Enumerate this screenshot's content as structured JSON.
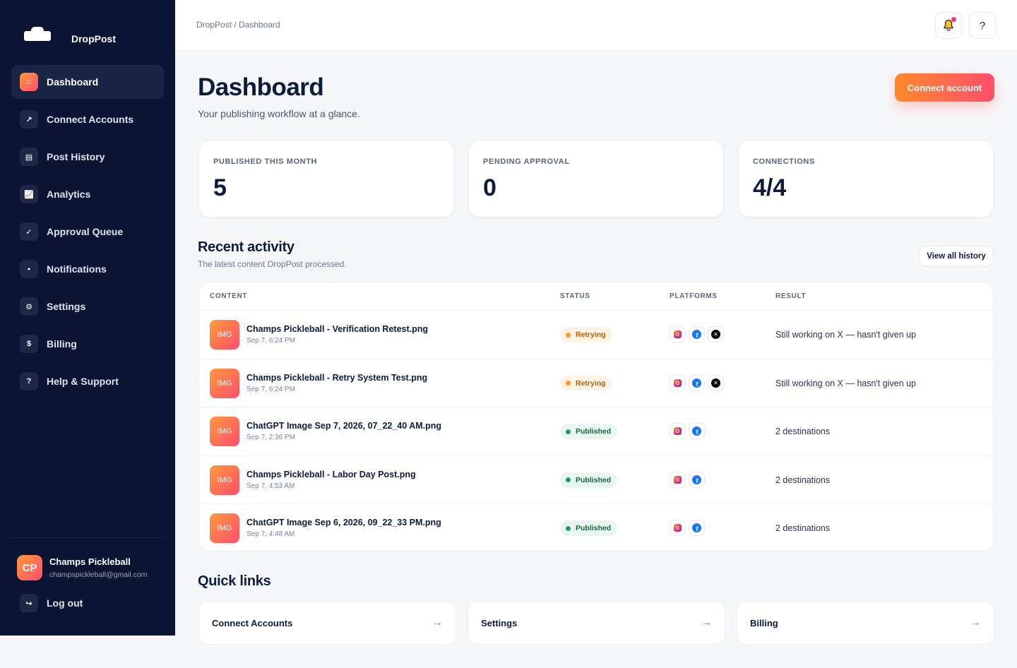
{
  "brand": {
    "name": "DropPost",
    "logo_icon": "cloud-logo-icon"
  },
  "sidebar": {
    "items": [
      {
        "label": "Dashboard",
        "icon": "⌂",
        "icon_name": "home-icon",
        "active": true
      },
      {
        "label": "Connect Accounts",
        "icon": "↗",
        "icon_name": "connect-icon"
      },
      {
        "label": "Post History",
        "icon": "▤",
        "icon_name": "history-icon"
      },
      {
        "label": "Analytics",
        "icon": "📈",
        "icon_name": "chart-icon"
      },
      {
        "label": "Approval Queue",
        "icon": "✓",
        "icon_name": "check-icon"
      },
      {
        "label": "Notifications",
        "icon": "●",
        "icon_name": "notification-icon"
      },
      {
        "label": "Settings",
        "icon": "⚙",
        "icon_name": "gear-icon"
      },
      {
        "label": "Billing",
        "icon": "$",
        "icon_name": "dollar-icon"
      },
      {
        "label": "Help & Support",
        "icon": "?",
        "icon_name": "help-icon"
      }
    ],
    "user": {
      "initials": "CP",
      "name": "Champs Pickleball",
      "email": "champspickleball@gmail.com"
    },
    "logout": {
      "label": "Log out",
      "icon": "↪"
    }
  },
  "topbar": {
    "breadcrumb": "DropPost / Dashboard",
    "help_label": "?"
  },
  "header": {
    "title": "Dashboard",
    "subtitle": "Your publishing workflow at a glance.",
    "primary_action": "Connect account"
  },
  "stats": [
    {
      "label": "PUBLISHED THIS MONTH",
      "value": "5"
    },
    {
      "label": "PENDING APPROVAL",
      "value": "0"
    },
    {
      "label": "CONNECTIONS",
      "value": "4/4"
    }
  ],
  "activity": {
    "title": "Recent activity",
    "subtitle": "The latest content DropPost processed.",
    "view_all": "View all history",
    "columns": [
      "CONTENT",
      "STATUS",
      "PLATFORMS",
      "RESULT"
    ],
    "rows": [
      {
        "thumb": "IMG",
        "name": "Champs Pickleball - Verification Retest.png",
        "date": "Sep 7, 6:24 PM",
        "status": "Retrying",
        "platforms": [
          "instagram",
          "facebook",
          "x"
        ],
        "result": "Still working on X — hasn't given up"
      },
      {
        "thumb": "IMG",
        "name": "Champs Pickleball - Retry System Test.png",
        "date": "Sep 7, 6:24 PM",
        "status": "Retrying",
        "platforms": [
          "instagram",
          "facebook",
          "x"
        ],
        "result": "Still working on X — hasn't given up"
      },
      {
        "thumb": "IMG",
        "name": "ChatGPT Image Sep 7, 2026, 07_22_40 AM.png",
        "date": "Sep 7, 2:36 PM",
        "status": "Published",
        "platforms": [
          "instagram",
          "facebook"
        ],
        "result": "2 destinations"
      },
      {
        "thumb": "IMG",
        "name": "Champs Pickleball - Labor Day Post.png",
        "date": "Sep 7, 4:53 AM",
        "status": "Published",
        "platforms": [
          "instagram",
          "facebook"
        ],
        "result": "2 destinations"
      },
      {
        "thumb": "IMG",
        "name": "ChatGPT Image Sep 6, 2026, 09_22_33 PM.png",
        "date": "Sep 7, 4:48 AM",
        "status": "Published",
        "platforms": [
          "instagram",
          "facebook"
        ],
        "result": "2 destinations"
      }
    ]
  },
  "quick_links": {
    "title": "Quick links",
    "items": [
      {
        "label": "Connect Accounts",
        "arrow": "→"
      },
      {
        "label": "Settings",
        "arrow": "→"
      },
      {
        "label": "Billing",
        "arrow": "→"
      }
    ]
  },
  "colors": {
    "sidebar_bg": "#0b1433",
    "accent_start": "#ff8a2a",
    "accent_end": "#ff4d6d",
    "page_bg": "#f6f7f9"
  }
}
